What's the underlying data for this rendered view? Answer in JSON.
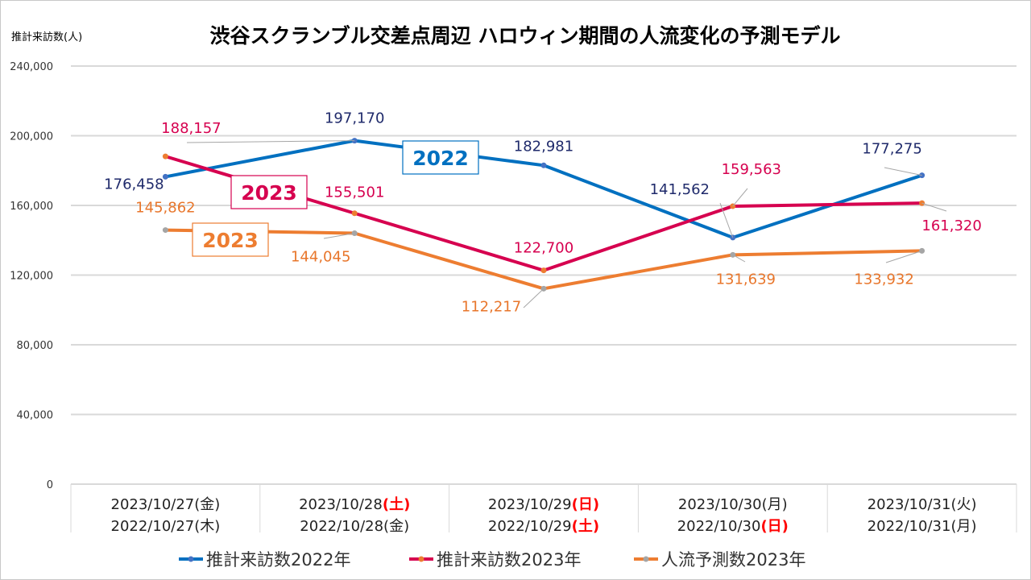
{
  "chart_data": {
    "type": "line",
    "title": "渋谷スクランブル交差点周辺 ハロウィン期間の人流変化の予測モデル",
    "ylabel": "推計来訪数(人)",
    "xlabel": "",
    "ylim": [
      0,
      240000
    ],
    "yticks": [
      0,
      40000,
      80000,
      120000,
      160000,
      200000,
      240000
    ],
    "ytick_labels": [
      "0",
      "40,000",
      "80,000",
      "120,000",
      "160,000",
      "200,000",
      "240,000"
    ],
    "grid": true,
    "legend_position": "bottom",
    "categories": [
      {
        "line1": {
          "date": "2023/10/27",
          "day": "(金)",
          "holiday": false
        },
        "line2": {
          "date": "2022/10/27",
          "day": "(木)",
          "holiday": false
        }
      },
      {
        "line1": {
          "date": "2023/10/28",
          "day": "(土)",
          "holiday": true
        },
        "line2": {
          "date": "2022/10/28",
          "day": "(金)",
          "holiday": false
        }
      },
      {
        "line1": {
          "date": "2023/10/29",
          "day": "(日)",
          "holiday": true
        },
        "line2": {
          "date": "2022/10/29",
          "day": "(土)",
          "holiday": true
        }
      },
      {
        "line1": {
          "date": "2023/10/30",
          "day": "(月)",
          "holiday": false
        },
        "line2": {
          "date": "2022/10/30",
          "day": "(日)",
          "holiday": true
        }
      },
      {
        "line1": {
          "date": "2023/10/31",
          "day": "(火)",
          "holiday": false
        },
        "line2": {
          "date": "2022/10/31",
          "day": "(月)",
          "holiday": false
        }
      }
    ],
    "series": [
      {
        "name": "推計来訪数2022年",
        "color": "#0070c0",
        "marker_color": "#4472c4",
        "label_color": "#1f2a6b",
        "values": [
          176458,
          197170,
          182981,
          141562,
          177275
        ],
        "labels": [
          "176,458",
          "197,170",
          "182,981",
          "141,562",
          "177,275"
        ]
      },
      {
        "name": "推計来訪数2023年",
        "color": "#d6004f",
        "marker_color": "#ed7d31",
        "label_color": "#d6004f",
        "values": [
          188157,
          155501,
          122700,
          159563,
          161320
        ],
        "labels": [
          "188,157",
          "155,501",
          "122,700",
          "159,563",
          "161,320"
        ]
      },
      {
        "name": "人流予測数2023年",
        "color": "#ed7d31",
        "marker_color": "#a5a5a5",
        "label_color": "#e8762b",
        "values": [
          145862,
          144045,
          112217,
          131639,
          133932
        ],
        "labels": [
          "145,862",
          "144,045",
          "112,217",
          "131,639",
          "133,932"
        ]
      }
    ],
    "annotations": [
      {
        "text": "2022",
        "color": "#0070c0"
      },
      {
        "text": "2023",
        "color": "#d6004f"
      },
      {
        "text": "2023",
        "color": "#ed7d31"
      }
    ],
    "holiday_color": "#ff0000"
  }
}
